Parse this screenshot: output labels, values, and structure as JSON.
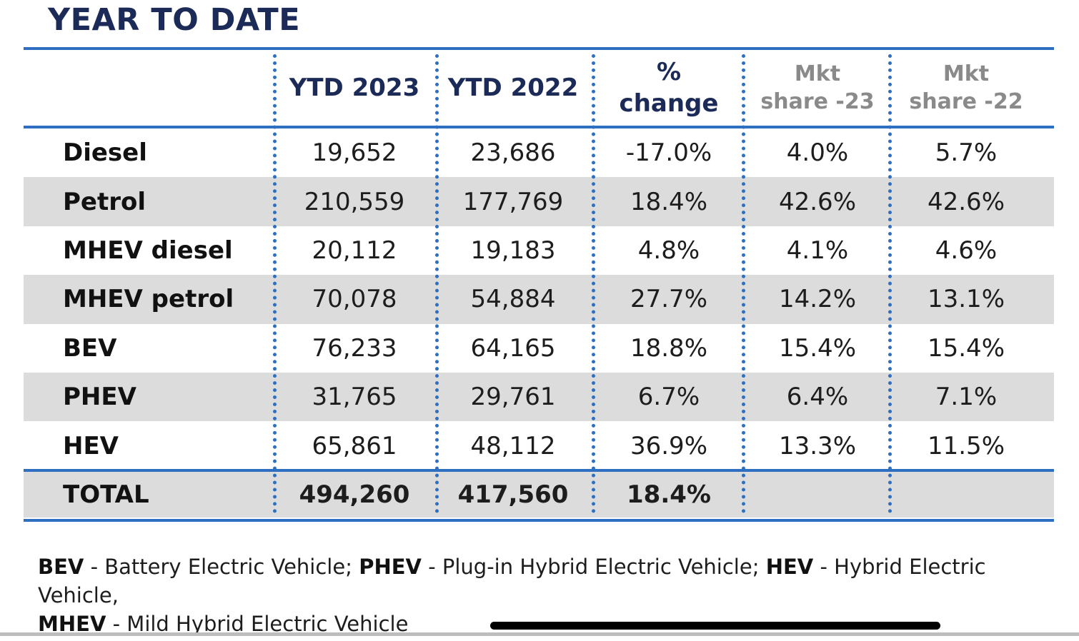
{
  "title": "YEAR TO DATE",
  "chart_data": {
    "type": "table",
    "columns": [
      {
        "key": "ytd2023",
        "lines": [
          "YTD 2023"
        ],
        "style": "dark"
      },
      {
        "key": "ytd2022",
        "lines": [
          "YTD 2022"
        ],
        "style": "dark"
      },
      {
        "key": "pct",
        "lines": [
          "%",
          "change"
        ],
        "style": "dark"
      },
      {
        "key": "share23",
        "lines": [
          "Mkt",
          "share -23"
        ],
        "style": "grey"
      },
      {
        "key": "share22",
        "lines": [
          "Mkt",
          "share -22"
        ],
        "style": "grey"
      }
    ],
    "rows": [
      {
        "label": "Diesel",
        "values": [
          "19,652",
          "23,686",
          "-17.0%",
          "4.0%",
          "5.7%"
        ]
      },
      {
        "label": "Petrol",
        "values": [
          "210,559",
          "177,769",
          "18.4%",
          "42.6%",
          "42.6%"
        ]
      },
      {
        "label": "MHEV diesel",
        "values": [
          "20,112",
          "19,183",
          "4.8%",
          "4.1%",
          "4.6%"
        ]
      },
      {
        "label": "MHEV petrol",
        "values": [
          "70,078",
          "54,884",
          "27.7%",
          "14.2%",
          "13.1%"
        ]
      },
      {
        "label": "BEV",
        "values": [
          "76,233",
          "64,165",
          "18.8%",
          "15.4%",
          "15.4%"
        ]
      },
      {
        "label": "PHEV",
        "values": [
          "31,765",
          "29,761",
          "6.7%",
          "6.4%",
          "7.1%"
        ]
      },
      {
        "label": "HEV",
        "values": [
          "65,861",
          "48,112",
          "36.9%",
          "13.3%",
          "11.5%"
        ]
      }
    ],
    "total": {
      "label": "TOTAL",
      "values": [
        "494,260",
        "417,560",
        "18.4%",
        "",
        ""
      ]
    }
  },
  "footnote": {
    "parts": [
      {
        "abbr": "BEV",
        "text": " - Battery Electric Vehicle; "
      },
      {
        "abbr": "PHEV",
        "text": " - Plug-in Hybrid Electric Vehicle; "
      },
      {
        "abbr": "HEV",
        "text": " - Hybrid Electric Vehicle,"
      },
      {
        "abbr": "MHEV",
        "text": " - Mild Hybrid Electric Vehicle"
      }
    ]
  },
  "colors": {
    "accent": "#2f6fc1",
    "title": "#1b2a57",
    "shade": "#dcdcdc"
  }
}
